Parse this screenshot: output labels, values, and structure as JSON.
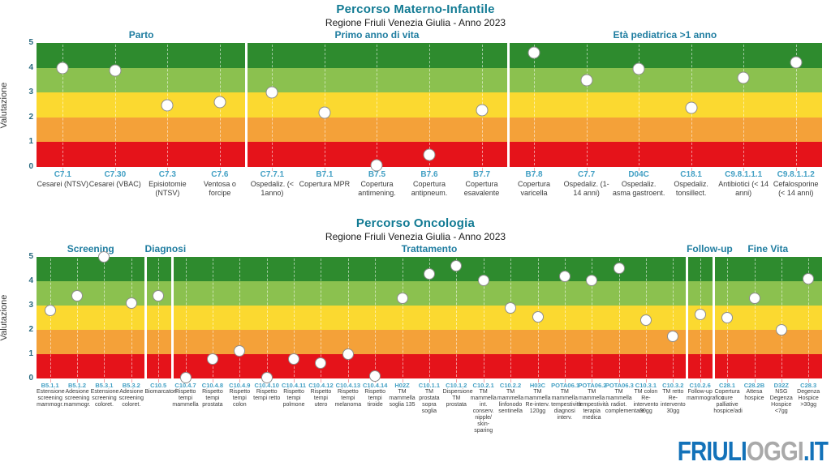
{
  "logo": {
    "friuli": "FRIULI",
    "oggi": "OGGI",
    "it": ".IT",
    "blue": "#1372B9",
    "gray": "#A9A9A9"
  },
  "chart_data": [
    {
      "type": "scatter",
      "title": "Percorso Materno-Infantile",
      "subtitle": "Regione Friuli Venezia Giulia - Anno 2023",
      "ylabel": "Valutazione",
      "ylim": [
        0,
        5
      ],
      "yticks": [
        "0",
        "1",
        "2",
        "3",
        "4",
        "5"
      ],
      "grid": "dashed-vertical",
      "band_colors_bottom_to_top": [
        "#E5131A",
        "#F4A139",
        "#FBD930",
        "#8BC14F",
        "#2E8B2E"
      ],
      "sections": [
        {
          "label": "Parto",
          "count": 4
        },
        {
          "label": "Primo anno di vita",
          "count": 5
        },
        {
          "label": "Età pediatrica >1 anno",
          "count": 6
        }
      ],
      "categories": [
        {
          "code": "C7.1",
          "desc": "Cesarei (NTSV)"
        },
        {
          "code": "C7.30",
          "desc": "Cesarei (VBAC)"
        },
        {
          "code": "C7.3",
          "desc": "Episiotomie (NTSV)"
        },
        {
          "code": "C7.6",
          "desc": "Ventosa o forcipe"
        },
        {
          "code": "C7.7.1",
          "desc": "Ospedaliz. (< 1anno)"
        },
        {
          "code": "B7.1",
          "desc": "Copertura MPR"
        },
        {
          "code": "B7.5",
          "desc": "Copertura antimening."
        },
        {
          "code": "B7.6",
          "desc": "Copertura antipneum."
        },
        {
          "code": "B7.7",
          "desc": "Copertura esavalente"
        },
        {
          "code": "B7.8",
          "desc": "Copertura varicella"
        },
        {
          "code": "C7.7",
          "desc": "Ospedaliz. (1-14 anni)"
        },
        {
          "code": "D04C",
          "desc": "Ospedaliz. asma gastroent."
        },
        {
          "code": "C18.1",
          "desc": "Ospedaliz. tonsillect."
        },
        {
          "code": "C9.8.1.1.1",
          "desc": "Antibiotici (< 14 anni)"
        },
        {
          "code": "C9.8.1.1.2",
          "desc": "Cefalosporine (< 14 anni)"
        }
      ],
      "values": [
        4.0,
        3.9,
        2.5,
        2.6,
        3.0,
        2.2,
        0.05,
        0.5,
        2.3,
        4.6,
        3.5,
        3.95,
        2.4,
        3.6,
        4.2
      ]
    },
    {
      "type": "scatter",
      "title": "Percorso Oncologia",
      "subtitle": "Regione Friuli Venezia Giulia - Anno 2023",
      "ylabel": "Valutazione",
      "ylim": [
        0,
        5
      ],
      "yticks": [
        "0",
        "1",
        "2",
        "3",
        "4",
        "5"
      ],
      "grid": "dashed-vertical",
      "band_colors_bottom_to_top": [
        "#E5131A",
        "#F4A139",
        "#FBD930",
        "#8BC14F",
        "#2E8B2E"
      ],
      "sections": [
        {
          "label": "Screening",
          "count": 4
        },
        {
          "label": "Diagnosi",
          "count": 1
        },
        {
          "label": "Trattamento",
          "count": 19
        },
        {
          "label": "Follow-up",
          "count": 1
        },
        {
          "label": "Fine Vita",
          "count": 4
        }
      ],
      "categories": [
        {
          "code": "B5.1.1",
          "desc": "Estensione screening mammogr."
        },
        {
          "code": "B5.1.2",
          "desc": "Adesione screening mammogr."
        },
        {
          "code": "B5.3.1",
          "desc": "Estensione screening coloret."
        },
        {
          "code": "B5.3.2",
          "desc": "Adesione screening coloret."
        },
        {
          "code": "C10.5",
          "desc": "Biomarcatori"
        },
        {
          "code": "C10.4.7",
          "desc": "Rispetto tempi mammella"
        },
        {
          "code": "C10.4.8",
          "desc": "Rispetto tempi prostata"
        },
        {
          "code": "C10.4.9",
          "desc": "Rispetto tempi colon"
        },
        {
          "code": "C10.4.10",
          "desc": "Rispetto tempi retto"
        },
        {
          "code": "C10.4.11",
          "desc": "Rispetto tempi polmone"
        },
        {
          "code": "C10.4.12",
          "desc": "Rispetto tempi utero"
        },
        {
          "code": "C10.4.13",
          "desc": "Rispetto tempi melanoma"
        },
        {
          "code": "C10.4.14",
          "desc": "Rispetto tempi tiroide"
        },
        {
          "code": "H02Z",
          "desc": "TM mammella soglia 135"
        },
        {
          "code": "C10.1.1",
          "desc": "TM prostata sopra soglia"
        },
        {
          "code": "C10.1.2",
          "desc": "Dispersione TM prostata"
        },
        {
          "code": "C10.2.1",
          "desc": "TM mammella int. conserv. nipple/ skin-sparing"
        },
        {
          "code": "C10.2.2",
          "desc": "TM mammella linfonodo sentinella"
        },
        {
          "code": "H03C",
          "desc": "TM mammella Re-interv. 120gg"
        },
        {
          "code": "POTA06.1",
          "desc": "TM mammella tempestività diagnosi interv."
        },
        {
          "code": "POTA06.2",
          "desc": "TM mammella tempestività terapia medica"
        },
        {
          "code": "POTA06.3",
          "desc": "TM mammella radiot. complementare"
        },
        {
          "code": "C10.3.1",
          "desc": "TM colon Re- intervento 30gg"
        },
        {
          "code": "C10.3.2",
          "desc": "TM retto Re- intervento 30gg"
        },
        {
          "code": "C10.2.6",
          "desc": "Follow-up mammografico"
        },
        {
          "code": "C28.1",
          "desc": "Copertura cure palliative hospice/adi"
        },
        {
          "code": "C28.2B",
          "desc": "Attesa hospice"
        },
        {
          "code": "D32Z",
          "desc": "NSG Degenza Hospice <7gg"
        },
        {
          "code": "C28.3",
          "desc": "Degenza Hospice >30gg"
        }
      ],
      "values": [
        2.8,
        3.4,
        5.0,
        3.1,
        3.4,
        0.05,
        0.8,
        1.15,
        0.05,
        0.8,
        0.65,
        1.0,
        0.1,
        3.3,
        4.3,
        4.65,
        4.05,
        2.9,
        2.55,
        4.2,
        4.05,
        4.55,
        2.4,
        1.75,
        2.65,
        2.5,
        3.3,
        2.0,
        4.1
      ]
    }
  ]
}
